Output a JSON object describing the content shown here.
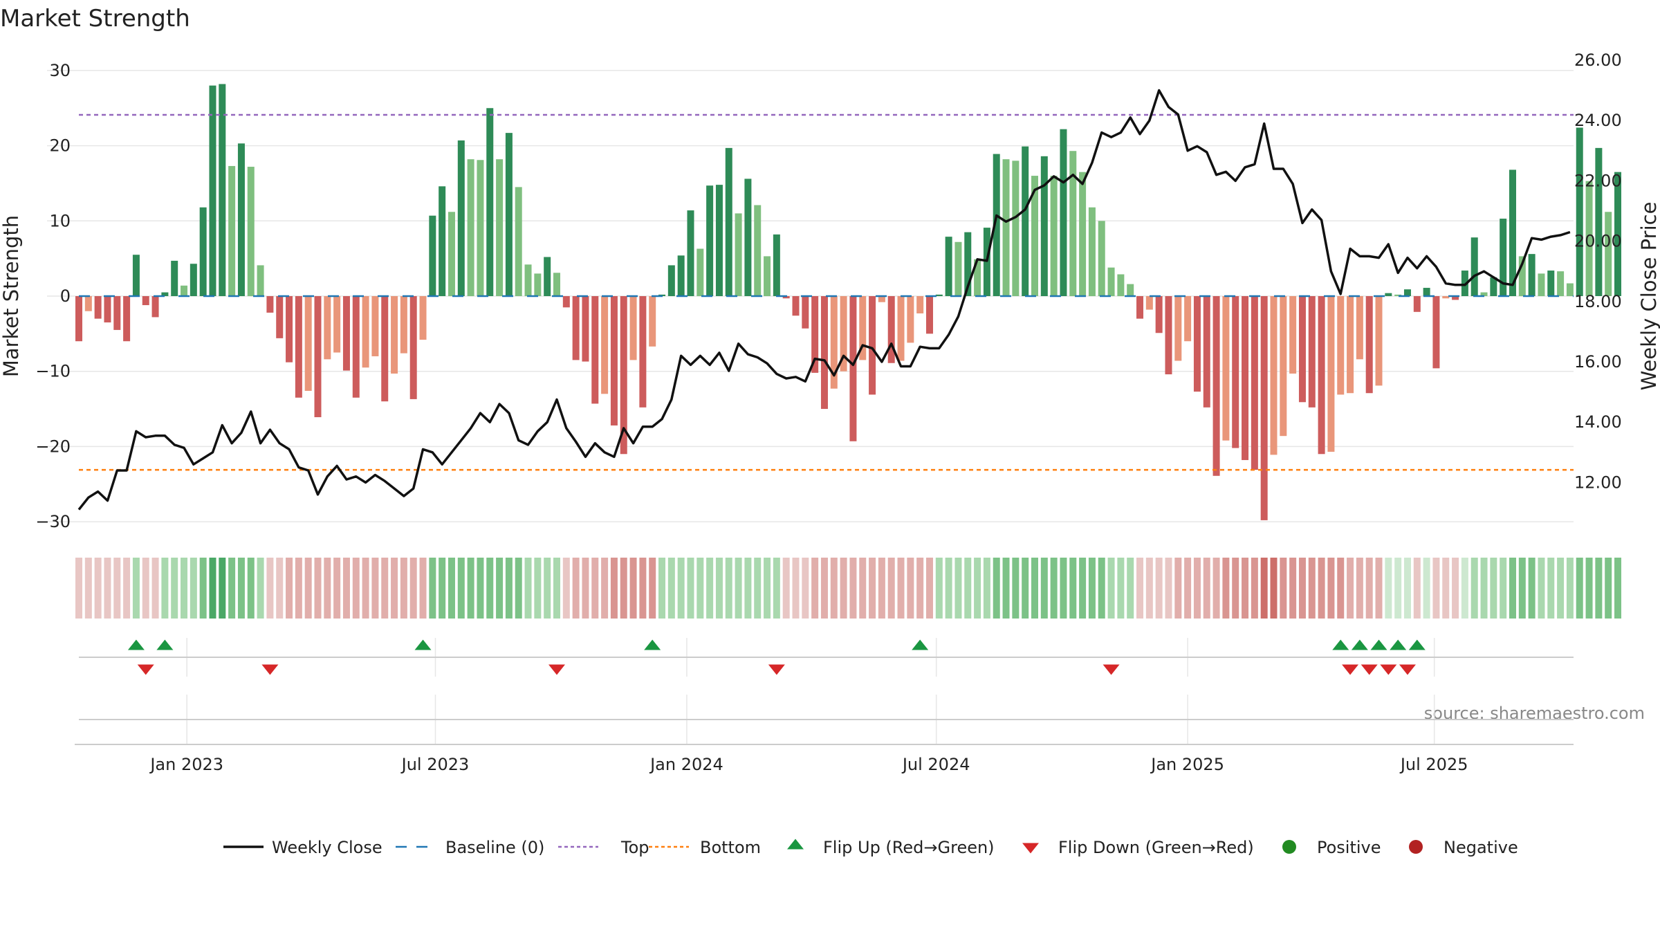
{
  "chart_data": {
    "type": "bar",
    "title": "Market Strength",
    "ylabel_left": "Market Strength",
    "ylabel_right": "Weekly Close Price",
    "source": "source: sharemaestro.com",
    "left_axis": {
      "range": [
        -35,
        32
      ],
      "ticks": [
        30,
        20,
        10,
        0,
        -10,
        -20,
        -30
      ],
      "tick_labels": [
        "30",
        "20",
        "10",
        "0",
        "−10",
        "−20",
        "−30"
      ]
    },
    "right_axis": {
      "range": [
        10.2,
        26.2
      ],
      "ticks": [
        26,
        24,
        22,
        20,
        18,
        16,
        14,
        12
      ],
      "tick_labels": [
        "26.00",
        "24.00",
        "22.00",
        "20.00",
        "18.00",
        "16.00",
        "14.00",
        "12.00"
      ]
    },
    "x_ticks": [
      {
        "week": 11.3,
        "label": "Jan 2023"
      },
      {
        "week": 37.3,
        "label": "Jul 2023"
      },
      {
        "week": 63.6,
        "label": "Jan 2024"
      },
      {
        "week": 89.7,
        "label": "Jul 2024"
      },
      {
        "week": 116.0,
        "label": "Jan 2025"
      },
      {
        "week": 141.8,
        "label": "Jul 2025"
      }
    ],
    "top_level": 24.1,
    "bottom_level": -23.1,
    "strength": [
      -6,
      -2,
      -3,
      -3.5,
      -4.5,
      -6,
      5.5,
      -1.2,
      -2.8,
      0.5,
      4.7,
      1.4,
      4.3,
      11.8,
      28,
      28.2,
      17.3,
      20.3,
      17.2,
      4.1,
      -2.2,
      -5.6,
      -8.8,
      -13.5,
      -12.6,
      -16.1,
      -8.4,
      -7.5,
      -9.9,
      -13.5,
      -9.5,
      -8,
      -14,
      -10.3,
      -7.6,
      -13.7,
      -5.8,
      10.7,
      14.6,
      11.2,
      20.7,
      18.2,
      18.1,
      25,
      18.2,
      21.7,
      14.5,
      4.2,
      3,
      5.2,
      3.1,
      -1.5,
      -8.5,
      -8.7,
      -14.3,
      -13,
      -17.2,
      -21,
      -8.5,
      -14.8,
      -6.7,
      0.2,
      4.1,
      5.4,
      11.4,
      6.3,
      14.7,
      14.8,
      19.7,
      11,
      15.6,
      12.1,
      5.3,
      8.2,
      -0.3,
      -2.6,
      -4.3,
      -10.2,
      -15,
      -12.3,
      -10,
      -19.3,
      -8.5,
      -13.1,
      -0.8,
      -8.9,
      -8.6,
      -6.2,
      -2.3,
      -5,
      0.2,
      7.9,
      7.2,
      8.5,
      4.9,
      9.1,
      18.9,
      18.2,
      18,
      19.9,
      16,
      18.6,
      16,
      22.2,
      19.3,
      16.5,
      11.8,
      10,
      3.8,
      2.9,
      1.6,
      -3,
      -1.8,
      -4.9,
      -10.4,
      -8.6,
      -6,
      -12.7,
      -14.8,
      -23.9,
      -19.2,
      -20.2,
      -21.8,
      -23.1,
      -29.8,
      -21.1,
      -18.6,
      -10.3,
      -14.1,
      -14.8,
      -21,
      -20.7,
      -13.1,
      -12.9,
      -8.4,
      -12.9,
      -11.9,
      0.4,
      0.2,
      0.9,
      -2.1,
      1.1,
      -9.6,
      -0.3,
      -0.5,
      3.4,
      7.8,
      0.5,
      2.5,
      10.3,
      16.8,
      5.3,
      5.6,
      3,
      3.4,
      3.3,
      1.7,
      22.4,
      15.3,
      19.7,
      11.2,
      16.5
    ],
    "close": [
      11.1,
      11.5,
      11.7,
      11.4,
      12.4,
      12.4,
      13.7,
      13.5,
      13.55,
      13.55,
      13.25,
      13.15,
      12.6,
      12.8,
      13.0,
      13.9,
      13.3,
      13.65,
      14.35,
      13.3,
      13.75,
      13.3,
      13.1,
      12.5,
      12.4,
      11.6,
      12.2,
      12.55,
      12.1,
      12.2,
      12.0,
      12.25,
      12.05,
      11.8,
      11.55,
      11.8,
      13.1,
      13.0,
      12.6,
      13.0,
      13.4,
      13.8,
      14.3,
      14.0,
      14.6,
      14.3,
      13.4,
      13.25,
      13.7,
      14.0,
      14.75,
      13.8,
      13.35,
      12.85,
      13.3,
      13.0,
      12.85,
      13.8,
      13.3,
      13.85,
      13.85,
      14.1,
      14.75,
      16.2,
      15.9,
      16.2,
      15.9,
      16.3,
      15.7,
      16.6,
      16.25,
      16.15,
      15.95,
      15.6,
      15.45,
      15.5,
      15.35,
      16.1,
      16.05,
      15.55,
      16.2,
      15.9,
      16.55,
      16.45,
      16.0,
      16.6,
      15.85,
      15.85,
      16.5,
      16.45,
      16.45,
      16.9,
      17.5,
      18.5,
      19.4,
      19.35,
      20.85,
      20.65,
      20.8,
      21.05,
      21.7,
      21.85,
      22.15,
      21.95,
      22.2,
      21.9,
      22.6,
      23.6,
      23.45,
      23.6,
      24.1,
      23.55,
      24.0,
      25.0,
      24.45,
      24.2,
      23.0,
      23.15,
      22.95,
      22.2,
      22.3,
      22.0,
      22.45,
      22.55,
      23.9,
      22.4,
      22.4,
      21.9,
      20.6,
      21.05,
      20.7,
      19.0,
      18.25,
      19.75,
      19.5,
      19.5,
      19.45,
      19.9,
      18.95,
      19.45,
      19.1,
      19.5,
      19.15,
      18.6,
      18.55,
      18.55,
      18.85,
      19.0,
      18.8,
      18.6,
      18.55,
      19.25,
      20.1,
      20.05,
      20.15,
      20.2,
      20.3
    ],
    "regime": [
      1,
      1,
      1,
      1,
      1,
      1,
      2,
      1,
      1,
      2,
      2,
      2,
      2,
      3,
      4,
      4,
      3,
      3,
      3,
      2,
      1,
      1,
      2,
      2,
      2,
      2,
      2,
      2,
      2,
      2,
      2,
      2,
      2,
      2,
      2,
      2,
      2,
      3,
      3,
      3,
      3,
      3,
      3,
      3,
      3,
      3,
      3,
      2,
      2,
      2,
      2,
      1,
      2,
      2,
      2,
      2,
      3,
      3,
      3,
      3,
      3,
      2,
      2,
      2,
      2,
      2,
      2,
      2,
      2,
      2,
      2,
      2,
      2,
      2,
      1,
      1,
      1,
      2,
      2,
      2,
      2,
      2,
      2,
      2,
      2,
      2,
      2,
      2,
      2,
      2,
      2,
      2,
      2,
      2,
      2,
      2,
      3,
      3,
      3,
      3,
      3,
      3,
      3,
      3,
      3,
      3,
      3,
      3,
      2,
      2,
      2,
      1,
      1,
      1,
      1,
      2,
      2,
      2,
      2,
      2,
      3,
      3,
      3,
      3,
      4,
      4,
      3,
      3,
      3,
      3,
      3,
      3,
      3,
      2,
      2,
      2,
      2,
      1,
      1,
      1,
      1,
      1,
      1,
      1,
      1,
      1,
      2,
      2,
      2,
      2,
      3,
      3,
      3,
      2,
      2,
      2,
      2,
      3,
      3,
      3,
      3,
      3
    ],
    "flip_up_weeks": [
      6,
      9,
      36,
      60,
      88,
      132,
      134,
      136,
      138,
      140
    ],
    "flip_down_weeks": [
      7,
      20,
      50,
      73,
      108,
      133,
      135,
      137,
      139
    ],
    "legend": [
      {
        "key": "weekly-close",
        "label": "Weekly Close"
      },
      {
        "key": "baseline",
        "label": "Baseline (0)"
      },
      {
        "key": "top",
        "label": "Top"
      },
      {
        "key": "bottom",
        "label": "Bottom"
      },
      {
        "key": "flip-up",
        "label": "Flip Up (Red→Green)"
      },
      {
        "key": "flip-down",
        "label": "Flip Down (Green→Red)"
      },
      {
        "key": "positive",
        "label": "Positive"
      },
      {
        "key": "negative",
        "label": "Negative"
      }
    ],
    "colors": {
      "pos_strong": "#2e8b57",
      "pos_weak": "#7fbf7f",
      "neg_strong": "#cd5c5c",
      "neg_weak": "#e9967a",
      "close_line": "#111111",
      "baseline": "#1f77b4",
      "top": "#9467bd",
      "bottom": "#ff7f0e",
      "flip_up": "#1a9641",
      "flip_down": "#d62728",
      "positive_dot": "#228b22",
      "negative_dot": "#b22222",
      "grid": "#e6e6e6",
      "axis": "#cccccc"
    },
    "regime_colors": {
      "neg": [
        "#e8c6c4",
        "#e1aeab",
        "#d99591",
        "#cd6f6a"
      ],
      "pos": [
        "#cde8d0",
        "#a9d8ae",
        "#7cc287",
        "#4aa866"
      ]
    }
  }
}
